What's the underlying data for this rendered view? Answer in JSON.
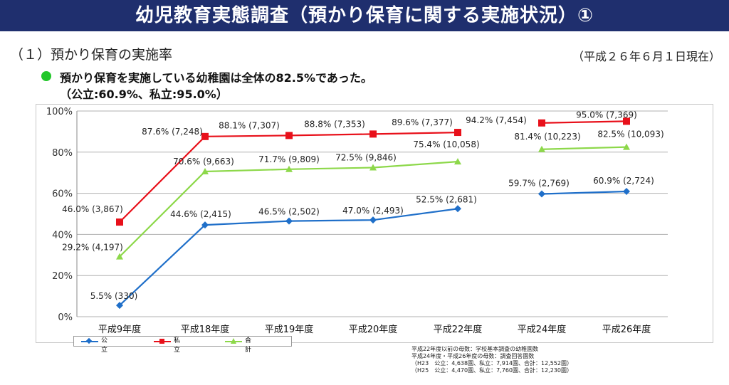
{
  "header": {
    "title": "幼児教育実態調査（預かり保育に関する実施状況）①"
  },
  "section": {
    "heading": "（１）預かり保育の実施率",
    "as_of": "（平成２６年６月１日現在）",
    "summary": "預かり保育を実施している幼稚園は全体の82.5%であった。",
    "summary_sub": "（公立:60.9%、私立:95.0%）"
  },
  "colors": {
    "public": "#1f6fc9",
    "private": "#e8101a",
    "total": "#8dd84a",
    "header_bg": "#1f2f6e",
    "bullet": "#22c72a"
  },
  "chart_data": {
    "type": "line",
    "categories": [
      "平成9年度",
      "平成18年度",
      "平成19年度",
      "平成20年度",
      "平成22年度",
      "平成24年度",
      "平成26年度"
    ],
    "ylim": [
      0,
      100
    ],
    "yticks": [
      "0%",
      "20%",
      "40%",
      "60%",
      "80%",
      "100%"
    ],
    "grid": true,
    "legend_position": "bottom-left",
    "series": [
      {
        "name": "公立",
        "marker": "diamond",
        "values": [
          5.5,
          44.6,
          46.5,
          47.0,
          52.5,
          59.7,
          60.9
        ],
        "labels": [
          "5.5% (330)",
          "44.6% (2,415)",
          "46.5% (2,502)",
          "47.0% (2,493)",
          "52.5% (2,681)",
          "59.7% (2,769)",
          "60.9% (2,724)"
        ]
      },
      {
        "name": "私立",
        "marker": "square",
        "values": [
          46.0,
          87.6,
          88.1,
          88.8,
          89.6,
          94.2,
          95.0
        ],
        "labels": [
          "46.0% (3,867)",
          "87.6% (7,248)",
          "88.1% (7,307)",
          "88.8% (7,353)",
          "89.6% (7,377)",
          "94.2% (7,454)",
          "95.0% (7,369)"
        ]
      },
      {
        "name": "合計",
        "marker": "triangle",
        "values": [
          29.2,
          70.6,
          71.7,
          72.5,
          75.4,
          81.4,
          82.5
        ],
        "labels": [
          "29.2% (4,197)",
          "70.6% (9,663)",
          "71.7% (9,809)",
          "72.5% (9,846)",
          "75.4% (10,058)",
          "81.4% (10,223)",
          "82.5% (10,093)"
        ]
      }
    ],
    "segments": [
      [
        0,
        4
      ],
      [
        5,
        6
      ]
    ]
  },
  "notes": [
    "平成22年度以前の母数：学校基本調査の幼稚園数",
    "平成24年度・平成26年度の母数：調査回答園数",
    "（H23　公立：4,638園、私立：7,914園、合計：12,552園）",
    "（H25　公立：4,470園、私立：7,760園、合計：12,230園）"
  ]
}
